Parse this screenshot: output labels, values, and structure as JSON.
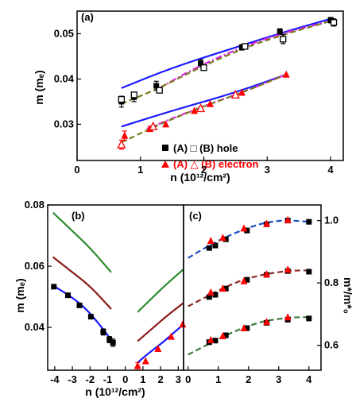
{
  "chart_data": [
    {
      "id": "a",
      "type": "scatter",
      "panel_label": "(a)",
      "xlabel": "n (10¹²/cm²)",
      "ylabel": "m (mₑ)",
      "xlim": [
        0,
        4.2
      ],
      "ylim": [
        0.022,
        0.055
      ],
      "xticks": [
        "0",
        "1",
        "2",
        "3",
        "4"
      ],
      "yticks": [
        "0.03",
        "0.04",
        "0.05"
      ],
      "legend": {
        "placement": "bottom-right",
        "entries": [
          {
            "label": "(A) □ (B) hole",
            "color": "#000000"
          },
          {
            "label": "(A) △ (B) electron",
            "color": "#ff0000"
          }
        ]
      },
      "series": [
        {
          "role": "hole-A",
          "marker": "filled-square",
          "color": "#000000",
          "x": [
            0.7,
            0.9,
            1.25,
            1.95,
            2.6,
            3.2,
            4.0
          ],
          "y": [
            0.035,
            0.036,
            0.0385,
            0.0435,
            0.047,
            0.0505,
            0.053
          ],
          "err": [
            0.0012,
            0.001,
            0.001,
            0.0008,
            0.0006,
            0.0006,
            0.0006
          ]
        },
        {
          "role": "hole-B",
          "marker": "open-square",
          "color": "#000000",
          "x": [
            0.7,
            0.9,
            1.3,
            2.0,
            2.65,
            3.25,
            4.05
          ],
          "y": [
            0.0355,
            0.0365,
            0.0375,
            0.0425,
            0.0472,
            0.0488,
            0.0525
          ],
          "err": [
            0,
            0,
            0,
            0,
            0,
            0.001,
            0.0008
          ]
        },
        {
          "role": "electron-A",
          "marker": "filled-triangle",
          "color": "#ff0000",
          "x": [
            0.75,
            1.15,
            1.4,
            1.85,
            2.1,
            2.6,
            3.3
          ],
          "y": [
            0.0275,
            0.029,
            0.03,
            0.033,
            0.0345,
            0.037,
            0.041
          ],
          "err": [
            0.001,
            0.0005,
            0,
            0,
            0,
            0,
            0
          ]
        },
        {
          "role": "electron-B",
          "marker": "open-triangle",
          "color": "#ff0000",
          "x": [
            0.7,
            1.2,
            1.95,
            2.5
          ],
          "y": [
            0.0255,
            0.0295,
            0.0335,
            0.0365
          ],
          "err": [
            0.001,
            0,
            0,
            0
          ]
        },
        {
          "role": "theory-hole",
          "style": "solid",
          "color": "#1a1aff",
          "x": [
            0.7,
            1.5,
            2.5,
            3.3,
            4.05
          ],
          "y": [
            0.038,
            0.0425,
            0.047,
            0.0505,
            0.0535
          ]
        },
        {
          "role": "theory-electron",
          "style": "solid",
          "color": "#1a1aff",
          "x": [
            0.7,
            1.5,
            2.5,
            3.3
          ],
          "y": [
            0.0295,
            0.033,
            0.037,
            0.041
          ]
        },
        {
          "role": "fit-hole",
          "style": "dash-dot",
          "color": "#e020e0",
          "x": [
            1.3,
            1.8,
            2.5,
            3.2,
            4.0
          ],
          "y": [
            0.038,
            0.042,
            0.0465,
            0.05,
            0.0528
          ]
        },
        {
          "role": "fit-electron",
          "style": "dash-dot",
          "color": "#e020e0",
          "x": [
            1.1,
            1.8,
            2.6,
            3.3
          ],
          "y": [
            0.029,
            0.033,
            0.037,
            0.041
          ]
        },
        {
          "role": "fit-hole-2",
          "style": "dashed",
          "color": "#7a7a20",
          "x": [
            0.7,
            1.3,
            2.0,
            2.7,
            3.3,
            4.0
          ],
          "y": [
            0.0345,
            0.038,
            0.043,
            0.0472,
            0.05,
            0.0528
          ]
        },
        {
          "role": "fit-electron-2",
          "style": "dashed",
          "color": "#7a7a20",
          "x": [
            0.7,
            1.3,
            2.0,
            2.7,
            3.3
          ],
          "y": [
            0.026,
            0.03,
            0.034,
            0.0375,
            0.041
          ]
        }
      ]
    },
    {
      "id": "b",
      "type": "line",
      "panel_label": "(b)",
      "xlabel": "n (10¹²/cm²)",
      "ylabel": "m (mₑ)",
      "xlim": [
        -4.4,
        3.3
      ],
      "ylim": [
        0.026,
        0.08
      ],
      "xticks": [
        "-4",
        "-3",
        "-2",
        "-1",
        "0",
        "1",
        "2",
        "3"
      ],
      "yticks": [
        "0.04",
        "0.06",
        "0.08"
      ],
      "series": [
        {
          "role": "green-hole",
          "style": "solid",
          "color": "#2e8b2e",
          "x": [
            -4.1,
            -3.0,
            -2.0,
            -0.8
          ],
          "y": [
            0.0775,
            0.0715,
            0.066,
            0.058
          ]
        },
        {
          "role": "green-electron",
          "style": "solid",
          "color": "#2e8b2e",
          "x": [
            0.7,
            1.5,
            2.3,
            3.3
          ],
          "y": [
            0.045,
            0.0495,
            0.054,
            0.059
          ]
        },
        {
          "role": "darkred-hole",
          "style": "solid",
          "color": "#8b1a1a",
          "x": [
            -4.1,
            -3.0,
            -2.0,
            -0.8
          ],
          "y": [
            0.063,
            0.058,
            0.0535,
            0.046
          ]
        },
        {
          "role": "darkred-electron",
          "style": "solid",
          "color": "#8b1a1a",
          "x": [
            0.7,
            1.5,
            2.3,
            3.3
          ],
          "y": [
            0.0355,
            0.0395,
            0.0435,
            0.048
          ]
        },
        {
          "role": "blue-hole",
          "style": "solid",
          "color": "#1a1aff",
          "x": [
            -4.05,
            -3.2,
            -2.5,
            -1.9,
            -1.2,
            -0.75
          ],
          "y": [
            0.0535,
            0.0505,
            0.0475,
            0.044,
            0.039,
            0.0355
          ]
        },
        {
          "role": "blue-electron",
          "style": "solid",
          "color": "#1a1aff",
          "x": [
            0.7,
            1.3,
            2.0,
            2.6,
            3.3
          ],
          "y": [
            0.0285,
            0.0315,
            0.0345,
            0.0375,
            0.041
          ]
        },
        {
          "role": "hole-points",
          "marker": "filled-square",
          "color": "#000000",
          "x": [
            -4.05,
            -3.25,
            -2.6,
            -1.95,
            -1.25,
            -0.9,
            -0.7
          ],
          "y": [
            0.0533,
            0.0505,
            0.0472,
            0.0435,
            0.0385,
            0.036,
            0.035
          ],
          "err": [
            0,
            0,
            0,
            0,
            0.001,
            0.001,
            0.0012
          ]
        },
        {
          "role": "electron-points",
          "marker": "filled-triangle",
          "color": "#ff0000",
          "x": [
            0.7,
            1.15,
            1.85,
            2.6,
            3.25
          ],
          "y": [
            0.0275,
            0.029,
            0.033,
            0.037,
            0.041
          ],
          "err": [
            0.001,
            0,
            0,
            0,
            0
          ]
        }
      ]
    },
    {
      "id": "c",
      "type": "scatter",
      "panel_label": "(c)",
      "xlabel": "",
      "ylabel": "m*/m*₀",
      "xlim": [
        -0.15,
        4.4
      ],
      "ylim": [
        0.52,
        1.05
      ],
      "xticks": [
        "0",
        "1",
        "2",
        "3",
        "4"
      ],
      "yticks": [
        "0.6",
        "0.8",
        "1.0"
      ],
      "series": [
        {
          "role": "fit-top",
          "style": "dashed",
          "color": "#1e4fc2",
          "x": [
            0.0,
            0.6,
            1.2,
            1.8,
            2.4,
            3.0,
            3.5,
            4.1
          ],
          "y": [
            0.88,
            0.915,
            0.945,
            0.97,
            0.99,
            1.0,
            1.0,
            0.995
          ]
        },
        {
          "role": "fit-mid",
          "style": "dashed",
          "color": "#8b2a2a",
          "x": [
            0.0,
            0.6,
            1.2,
            1.8,
            2.4,
            3.0,
            3.5,
            4.1
          ],
          "y": [
            0.725,
            0.755,
            0.785,
            0.81,
            0.825,
            0.835,
            0.84,
            0.84
          ]
        },
        {
          "role": "fit-bottom",
          "style": "dashed",
          "color": "#3a7a3a",
          "x": [
            0.0,
            0.6,
            1.2,
            1.8,
            2.4,
            3.0,
            3.5,
            4.1
          ],
          "y": [
            0.57,
            0.6,
            0.63,
            0.655,
            0.675,
            0.685,
            0.69,
            0.69
          ]
        },
        {
          "role": "top-squares",
          "marker": "filled-square",
          "color": "#000000",
          "x": [
            0.7,
            0.9,
            1.25,
            1.95,
            2.6,
            3.3,
            4.0
          ],
          "y": [
            0.912,
            0.92,
            0.94,
            0.968,
            0.988,
            1.0,
            0.996
          ]
        },
        {
          "role": "top-triangles",
          "marker": "filled-triangle",
          "color": "#ff0000",
          "x": [
            0.75,
            1.15,
            1.85,
            2.6,
            3.3
          ],
          "y": [
            0.935,
            0.945,
            0.975,
            0.99,
            1.002
          ]
        },
        {
          "role": "mid-squares",
          "marker": "filled-square",
          "color": "#000000",
          "x": [
            0.7,
            0.9,
            1.25,
            1.95,
            2.6,
            3.3,
            4.0
          ],
          "y": [
            0.755,
            0.762,
            0.782,
            0.81,
            0.826,
            0.838,
            0.836
          ]
        },
        {
          "role": "mid-triangles",
          "marker": "filled-triangle",
          "color": "#ff0000",
          "x": [
            0.75,
            1.15,
            1.85,
            2.6,
            3.3
          ],
          "y": [
            0.77,
            0.782,
            0.806,
            0.828,
            0.843
          ]
        },
        {
          "role": "bottom-squares",
          "marker": "filled-square",
          "color": "#000000",
          "x": [
            0.7,
            0.9,
            1.25,
            1.95,
            2.6,
            3.3,
            4.0
          ],
          "y": [
            0.61,
            0.615,
            0.632,
            0.655,
            0.672,
            0.682,
            0.686
          ]
        },
        {
          "role": "bottom-triangles",
          "marker": "filled-triangle",
          "color": "#ff0000",
          "x": [
            0.75,
            1.15,
            1.85,
            2.6,
            3.3
          ],
          "y": [
            0.617,
            0.63,
            0.655,
            0.675,
            0.69
          ]
        }
      ]
    }
  ]
}
